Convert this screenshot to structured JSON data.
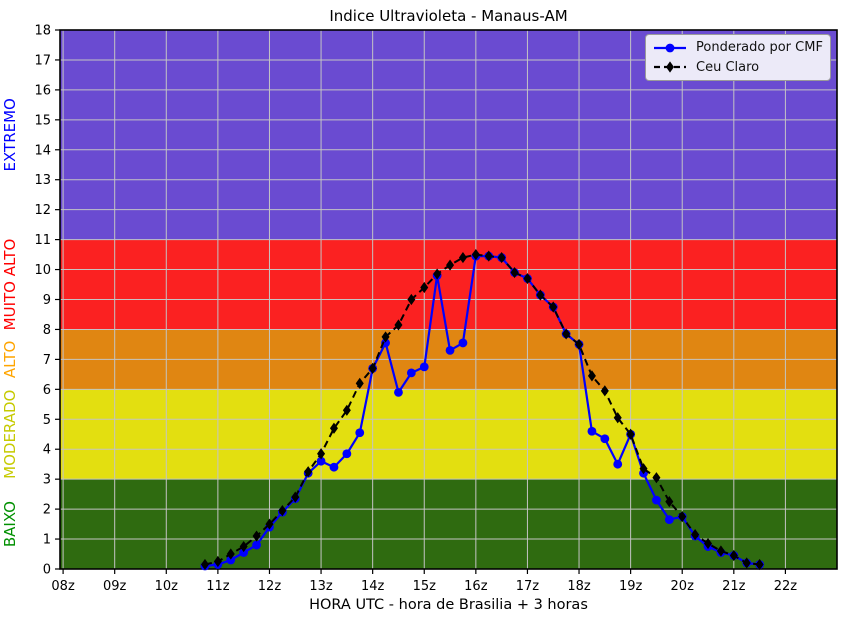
{
  "title": "Indice Ultravioleta - Manaus-AM",
  "xlabel": "HORA UTC - hora de Brasilia + 3 horas",
  "chart_data": {
    "type": "line",
    "title": "Indice Ultravioleta - Manaus-AM",
    "xlabel": "HORA UTC - hora de Brasilia + 3 horas",
    "ylabel": "",
    "xlim": [
      7.94,
      23.0
    ],
    "ylim": [
      0,
      18
    ],
    "grid": true,
    "grid_color": "#c4c4c4",
    "x_tick_values": [
      8,
      9,
      10,
      11,
      12,
      13,
      14,
      15,
      16,
      17,
      18,
      19,
      20,
      21,
      22
    ],
    "x_tick_labels": [
      "08z",
      "09z",
      "10z",
      "11z",
      "12z",
      "13z",
      "14z",
      "15z",
      "16z",
      "17z",
      "18z",
      "19z",
      "20z",
      "21z",
      "22z"
    ],
    "y_tick_values": [
      0,
      1,
      2,
      3,
      4,
      5,
      6,
      7,
      8,
      9,
      10,
      11,
      12,
      13,
      14,
      15,
      16,
      17,
      18
    ],
    "bands": [
      {
        "label": "BAIXO",
        "from": 0,
        "to": 3,
        "color": "#2f6b10",
        "label_color": "#009000"
      },
      {
        "label": "MODERADO",
        "from": 3,
        "to": 6,
        "color": "#e3df10",
        "label_color": "#c6ca00"
      },
      {
        "label": "ALTO",
        "from": 6,
        "to": 8,
        "color": "#e08612",
        "label_color": "#ffa500"
      },
      {
        "label": "MUITO ALTO",
        "from": 8,
        "to": 11,
        "color": "#fb2121",
        "label_color": "#ff0000"
      },
      {
        "label": "EXTREMO",
        "from": 11,
        "to": 18,
        "color": "#6a4bd1",
        "label_color": "#0000ff"
      }
    ],
    "legend_position": "top-right",
    "series": [
      {
        "name": "Ponderado por CMF",
        "color": "#0000ff",
        "line_style": "solid",
        "marker": "circle",
        "x": [
          10.75,
          11,
          11.25,
          11.5,
          11.75,
          12,
          12.25,
          12.5,
          12.75,
          13,
          13.25,
          13.5,
          13.75,
          14,
          14.25,
          14.5,
          14.75,
          15,
          15.25,
          15.5,
          15.75,
          16,
          16.25,
          16.5,
          16.75,
          17,
          17.25,
          17.5,
          17.75,
          18,
          18.25,
          18.5,
          18.75,
          19,
          19.25,
          19.5,
          19.75,
          20,
          20.25,
          20.5,
          20.75,
          21,
          21.25,
          21.5
        ],
        "y": [
          0.1,
          0.15,
          0.3,
          0.55,
          0.8,
          1.4,
          1.9,
          2.35,
          3.2,
          3.6,
          3.4,
          3.85,
          4.55,
          6.7,
          7.55,
          5.9,
          6.55,
          6.75,
          9.8,
          7.3,
          7.55,
          10.45,
          10.45,
          10.4,
          9.9,
          9.7,
          9.15,
          8.75,
          7.85,
          7.5,
          4.6,
          4.35,
          3.5,
          4.5,
          3.2,
          2.3,
          1.65,
          1.75,
          1.1,
          0.75,
          0.55,
          0.45,
          0.2,
          0.15
        ]
      },
      {
        "name": "Ceu Claro",
        "color": "#000000",
        "line_style": "dashed",
        "marker": "diamond",
        "x": [
          10.75,
          11,
          11.25,
          11.5,
          11.75,
          12,
          12.25,
          12.5,
          12.75,
          13,
          13.25,
          13.5,
          13.75,
          14,
          14.25,
          14.5,
          14.75,
          15,
          15.25,
          15.5,
          15.75,
          16,
          16.25,
          16.5,
          16.75,
          17,
          17.25,
          17.5,
          17.75,
          18,
          18.25,
          18.5,
          18.75,
          19,
          19.25,
          19.5,
          19.75,
          20,
          20.25,
          20.5,
          20.75,
          21,
          21.25,
          21.5
        ],
        "y": [
          0.15,
          0.25,
          0.5,
          0.75,
          1.1,
          1.5,
          1.95,
          2.4,
          3.25,
          3.85,
          4.7,
          5.3,
          6.2,
          6.7,
          7.75,
          8.15,
          9.0,
          9.4,
          9.85,
          10.15,
          10.4,
          10.5,
          10.45,
          10.4,
          9.9,
          9.7,
          9.15,
          8.75,
          7.85,
          7.5,
          6.45,
          5.95,
          5.05,
          4.5,
          3.35,
          3.05,
          2.25,
          1.75,
          1.15,
          0.85,
          0.6,
          0.45,
          0.2,
          0.15
        ]
      }
    ]
  }
}
